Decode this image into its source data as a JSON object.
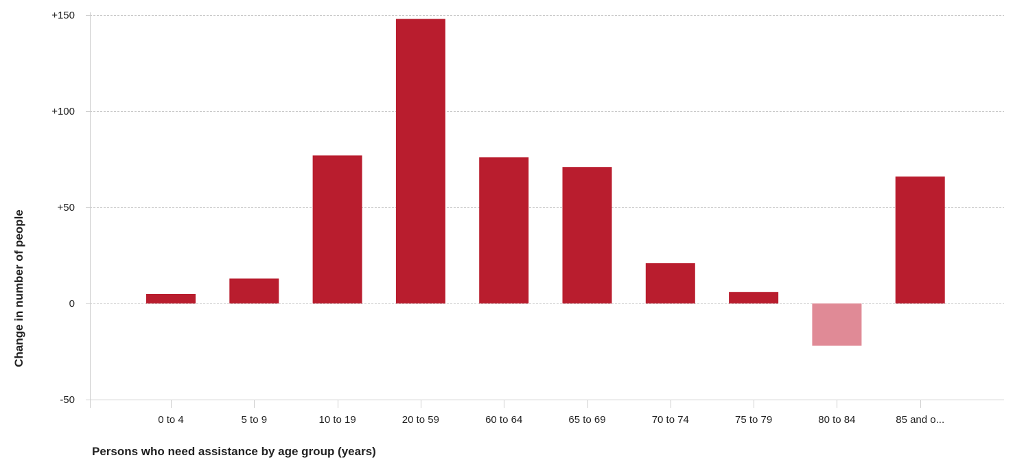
{
  "chart_data": {
    "type": "bar",
    "title": "",
    "xlabel": "Persons who need assistance by age group (years)",
    "ylabel": "Change in number of people",
    "categories": [
      "0 to 4",
      "5 to 9",
      "10 to 19",
      "20 to 59",
      "60 to 64",
      "65 to 69",
      "70 to 74",
      "75 to 79",
      "80 to 84",
      "85 and o..."
    ],
    "values": [
      5,
      13,
      77,
      148,
      76,
      71,
      21,
      6,
      -22,
      66
    ],
    "ylim": [
      -50,
      150
    ],
    "yticks": [
      -50,
      0,
      50,
      100,
      150
    ],
    "ytick_labels": [
      "-50",
      "0",
      "+50",
      "+100",
      "+150"
    ],
    "grid": true,
    "legend": "none",
    "colors": {
      "positive": "#b91d2e",
      "negative": "#e08a96"
    }
  }
}
